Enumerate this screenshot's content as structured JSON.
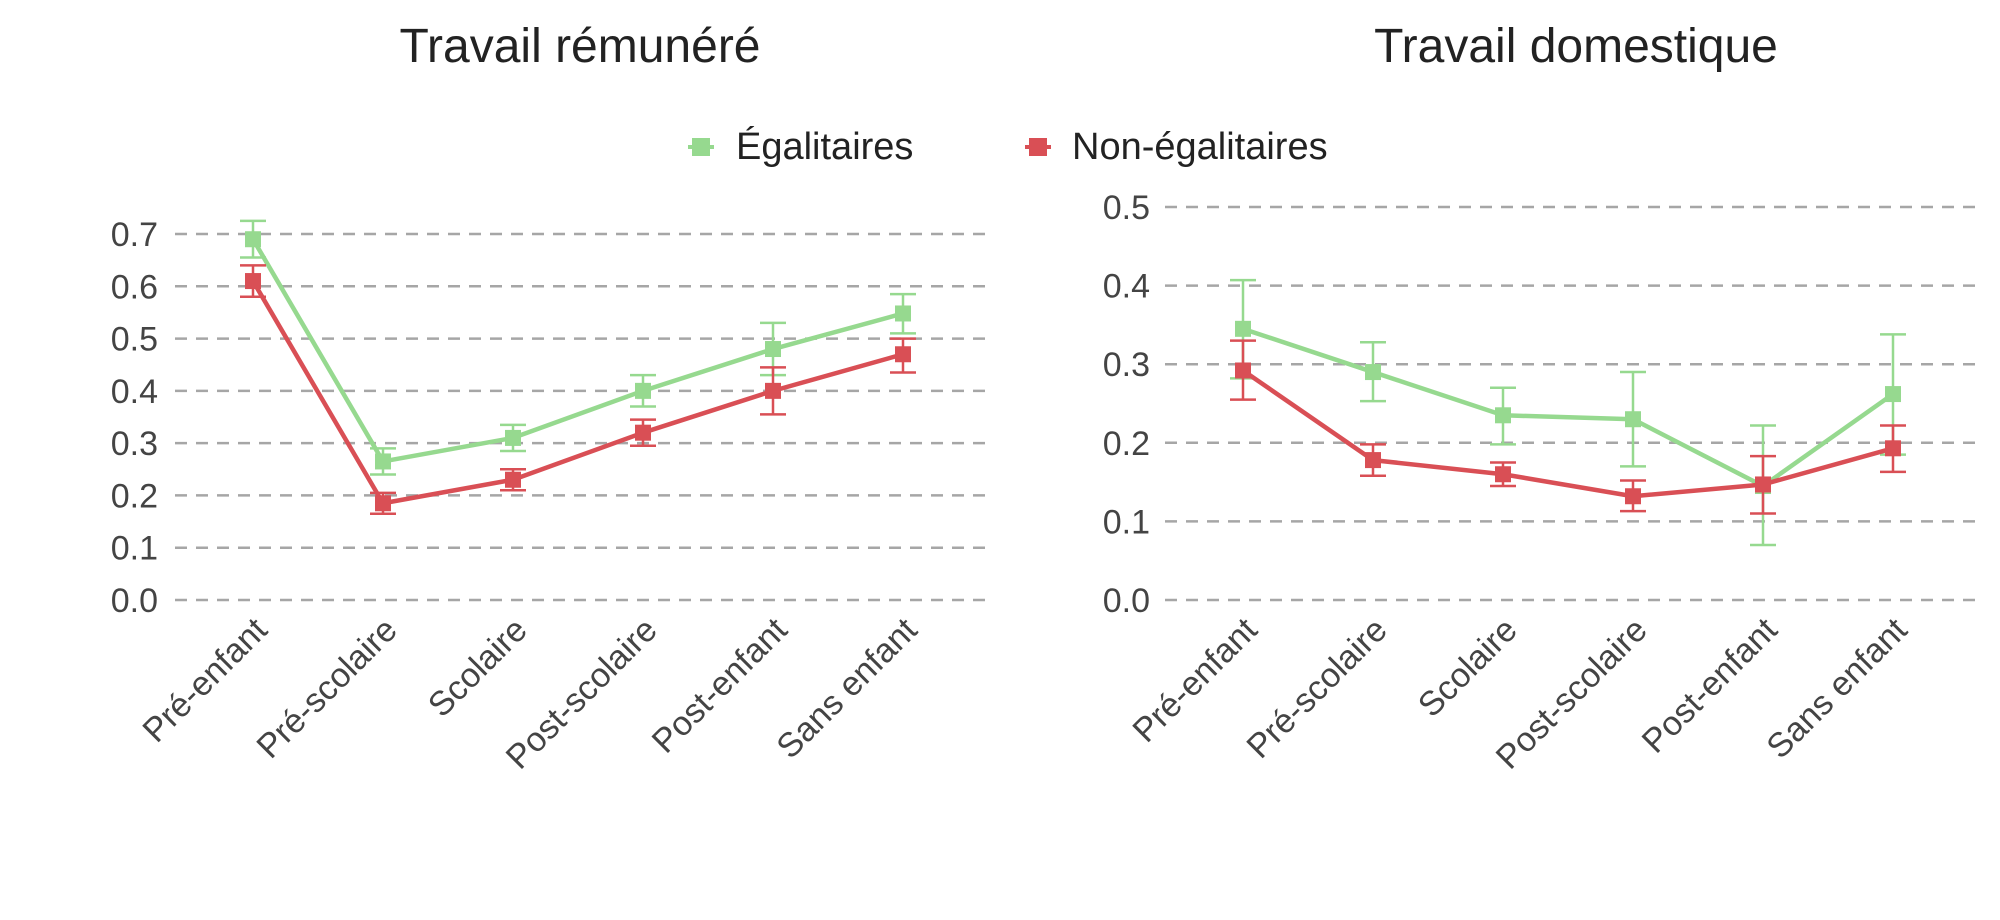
{
  "legend": {
    "series": [
      {
        "name": "Égalitaires",
        "color": "#96d98f"
      },
      {
        "name": "Non-égalitaires",
        "color": "#d94f55"
      }
    ]
  },
  "chart_data": [
    {
      "type": "line",
      "title": "Travail rémunéré",
      "categories": [
        "Pré-enfant",
        "Pré-scolaire",
        "Scolaire",
        "Post-scolaire",
        "Post-enfant",
        "Sans enfant"
      ],
      "ylim": [
        0,
        0.7
      ],
      "yticks": [
        "0.0",
        "0.1",
        "0.2",
        "0.3",
        "0.4",
        "0.5",
        "0.6",
        "0.7"
      ],
      "grid": true,
      "series": [
        {
          "name": "Égalitaires",
          "values": [
            0.69,
            0.265,
            0.31,
            0.4,
            0.48,
            0.548
          ],
          "err_low": [
            0.655,
            0.24,
            0.285,
            0.37,
            0.43,
            0.51
          ],
          "err_high": [
            0.725,
            0.29,
            0.335,
            0.43,
            0.53,
            0.585
          ]
        },
        {
          "name": "Non-égalitaires",
          "values": [
            0.61,
            0.185,
            0.23,
            0.32,
            0.4,
            0.47
          ],
          "err_low": [
            0.58,
            0.165,
            0.21,
            0.295,
            0.355,
            0.435
          ],
          "err_high": [
            0.64,
            0.205,
            0.25,
            0.345,
            0.445,
            0.5
          ]
        }
      ]
    },
    {
      "type": "line",
      "title": "Travail domestique",
      "categories": [
        "Pré-enfant",
        "Pré-scolaire",
        "Scolaire",
        "Post-scolaire",
        "Post-enfant",
        "Sans enfant"
      ],
      "ylim": [
        0,
        0.5
      ],
      "yticks": [
        "0.0",
        "0.1",
        "0.2",
        "0.3",
        "0.4",
        "0.5"
      ],
      "grid": true,
      "series": [
        {
          "name": "Égalitaires",
          "values": [
            0.345,
            0.29,
            0.235,
            0.23,
            0.145,
            0.262
          ],
          "err_low": [
            0.282,
            0.253,
            0.198,
            0.17,
            0.07,
            0.185
          ],
          "err_high": [
            0.407,
            0.328,
            0.27,
            0.29,
            0.222,
            0.338
          ]
        },
        {
          "name": "Non-égalitaires",
          "values": [
            0.292,
            0.178,
            0.16,
            0.132,
            0.147,
            0.193
          ],
          "err_low": [
            0.255,
            0.158,
            0.145,
            0.113,
            0.11,
            0.163
          ],
          "err_high": [
            0.33,
            0.198,
            0.175,
            0.152,
            0.183,
            0.222
          ]
        }
      ]
    }
  ]
}
